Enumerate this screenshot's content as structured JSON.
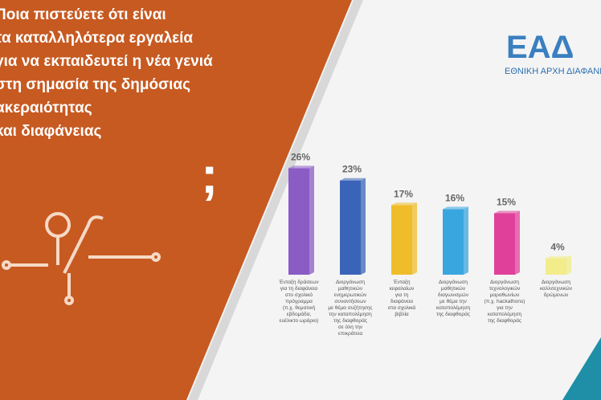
{
  "header": {
    "logo": "ΕΑΔ",
    "organization": "ΕΘΝΙΚΗ ΑΡΧΗ ΔΙΑΦΑΝΕΙΑΣ"
  },
  "question": {
    "lines": [
      "Ποια πιστεύετε ότι είναι",
      "τα καταλληλότερα εργαλεία",
      "για να εκπαιδευτεί η νέα γενιά",
      "στη σημασία της δημόσιας",
      "ακεραιότητας",
      "και διαφάνειας"
    ],
    "mark": ";"
  },
  "chart_data": {
    "type": "bar",
    "categories": [
      "Ένταξη δράσεων\nγια τη διαφάνεια\nστο σχολικό\nπρόγραμμα\n(π.χ. θεματική\nεβδομάδα,\nευέλικτο ωράριο)",
      "Διοργάνωση\nμαθητικών\nενημερωτικών\nσυναντήσεων\nμε θέμα συζήτησης\nτην καταπολέμηση\nτης διαφθοράς\nσε όλη την\nεπικράτεια",
      "Ένταξη\nκεφαλαίων\nγια τη\nδιαφάνεια\nστα σχολικά\nβιβλία",
      "Διοργάνωση\nμαθητικών\nδιαγωνισμών\nμε θέμα την\nκαταπολέμηση\nτης διαφθοράς",
      "Διοργάνωση\nτεχνολογικών\nμαραθωνίων\n(π.χ. hackathons)\nγια την\nκαταπολέμηση\nτης διαφθοράς",
      "Διοργάνωση\nκαλλιτεχνικών\nδρώμενων"
    ],
    "values": [
      26,
      23,
      17,
      16,
      15,
      4
    ],
    "value_labels": [
      "26%",
      "23%",
      "17%",
      "16%",
      "15%",
      "4%"
    ],
    "colors": [
      "#8a5cc4",
      "#3a64b8",
      "#f0bd2a",
      "#3aa6e0",
      "#e0409a",
      "#f2ec8a"
    ]
  }
}
